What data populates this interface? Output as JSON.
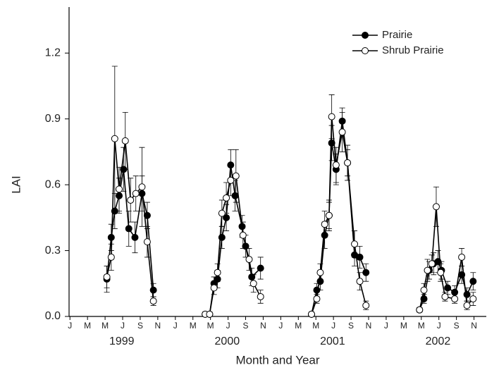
{
  "chart_data": {
    "type": "line",
    "ylabel": "LAI",
    "xlabel": "Month and Year",
    "xlim": [
      -0.1,
      47.4
    ],
    "ylim": [
      0,
      1.4
    ],
    "yticks": [
      {
        "value": 0,
        "label": "0.0"
      },
      0.3,
      0.6,
      0.9,
      1.2
    ],
    "xticks": [
      {
        "value": 0,
        "label": "J"
      },
      {
        "value": 2,
        "label": "M"
      },
      {
        "value": 4,
        "label": "M"
      },
      {
        "value": 6,
        "label": "J"
      },
      {
        "value": 8,
        "label": "S"
      },
      {
        "value": 10,
        "label": "N"
      },
      {
        "value": 12,
        "label": "J"
      },
      {
        "value": 14,
        "label": "M"
      },
      {
        "value": 16,
        "label": "M"
      },
      {
        "value": 18,
        "label": "J"
      },
      {
        "value": 20,
        "label": "S"
      },
      {
        "value": 22,
        "label": "N"
      },
      {
        "value": 24,
        "label": "J"
      },
      {
        "value": 26,
        "label": "M"
      },
      {
        "value": 28,
        "label": "M"
      },
      {
        "value": 30,
        "label": "J"
      },
      {
        "value": 32,
        "label": "S"
      },
      {
        "value": 34,
        "label": "N"
      },
      {
        "value": 36,
        "label": "J"
      },
      {
        "value": 38,
        "label": "M"
      },
      {
        "value": 40,
        "label": "M"
      },
      {
        "value": 42,
        "label": "J"
      },
      {
        "value": 44,
        "label": "S"
      },
      {
        "value": 46,
        "label": "N"
      }
    ],
    "year_ticks": [
      {
        "value": 5.9,
        "label": "1999"
      },
      {
        "value": 17.9,
        "label": "2000"
      },
      {
        "value": 29.9,
        "label": "2001"
      },
      {
        "value": 41.9,
        "label": "2002"
      }
    ],
    "legend": "upper right",
    "series": [
      {
        "name": "Prairie",
        "color": "#000000",
        "fill": "#000000",
        "x": [
          4.2,
          4.7,
          5.1,
          5.6,
          6.1,
          6.7,
          7.4,
          8.2,
          8.8,
          9.5,
          null,
          15.4,
          15.9,
          16.4,
          16.8,
          17.3,
          17.8,
          18.3,
          18.8,
          19.6,
          20.0,
          20.7,
          21.7,
          null,
          27.5,
          28.1,
          28.5,
          29.0,
          29.5,
          29.8,
          30.3,
          31.0,
          31.6,
          32.4,
          33.0,
          33.7,
          null,
          39.8,
          40.3,
          40.9,
          41.4,
          41.9,
          42.3,
          43.0,
          43.8,
          44.6,
          45.2,
          45.9
        ],
        "values": [
          0.17,
          0.36,
          0.48,
          0.55,
          0.67,
          0.4,
          0.36,
          0.56,
          0.46,
          0.12,
          null,
          0.01,
          0.01,
          0.15,
          0.17,
          0.36,
          0.45,
          0.69,
          0.55,
          0.41,
          0.32,
          0.18,
          0.22,
          null,
          0.01,
          0.12,
          0.16,
          0.37,
          0.46,
          0.79,
          0.67,
          0.89,
          0.7,
          0.28,
          0.27,
          0.2,
          null,
          0.03,
          0.08,
          0.21,
          0.24,
          0.25,
          0.21,
          0.13,
          0.11,
          0.19,
          0.1,
          0.16
        ],
        "errors": [
          0.06,
          0.06,
          0.08,
          0.08,
          0.1,
          0.08,
          0.07,
          0.08,
          0.06,
          0.03,
          null,
          0.01,
          0.01,
          0.03,
          0.04,
          0.05,
          0.06,
          0.07,
          0.07,
          0.05,
          0.05,
          0.04,
          0.05,
          null,
          0.01,
          0.03,
          0.04,
          0.06,
          0.06,
          0.08,
          0.07,
          0.06,
          0.08,
          0.05,
          0.05,
          0.04,
          null,
          0.01,
          0.02,
          0.04,
          0.05,
          0.05,
          0.04,
          0.03,
          0.03,
          0.04,
          0.03,
          0.04
        ]
      },
      {
        "name": "Shrub Prairie",
        "color": "#000000",
        "fill": "#ffffff",
        "x": [
          4.2,
          4.7,
          5.1,
          5.6,
          6.3,
          6.9,
          7.5,
          8.2,
          8.8,
          9.5,
          null,
          15.4,
          15.9,
          16.4,
          16.8,
          17.3,
          17.8,
          18.3,
          18.9,
          19.7,
          20.4,
          20.9,
          21.7,
          null,
          27.5,
          28.1,
          28.5,
          29.0,
          29.5,
          29.8,
          30.3,
          31.0,
          31.6,
          32.4,
          33.0,
          33.7,
          null,
          39.8,
          40.3,
          40.7,
          41.2,
          41.7,
          42.2,
          42.7,
          43.8,
          44.6,
          45.2,
          45.9
        ],
        "values": [
          0.18,
          0.27,
          0.81,
          0.58,
          0.8,
          0.53,
          0.56,
          0.59,
          0.34,
          0.07,
          null,
          0.01,
          0.01,
          0.13,
          0.2,
          0.47,
          0.54,
          0.62,
          0.64,
          0.37,
          0.26,
          0.15,
          0.09,
          null,
          0.01,
          0.08,
          0.2,
          0.42,
          0.46,
          0.91,
          0.69,
          0.84,
          0.7,
          0.33,
          0.16,
          0.05,
          null,
          0.03,
          0.12,
          0.21,
          0.24,
          0.5,
          0.2,
          0.09,
          0.08,
          0.27,
          0.05,
          0.08
        ],
        "errors": [
          0.05,
          0.06,
          0.33,
          0.1,
          0.13,
          0.1,
          0.08,
          0.18,
          0.07,
          0.02,
          null,
          0.01,
          0.01,
          0.03,
          0.04,
          0.06,
          0.07,
          0.07,
          0.12,
          0.06,
          0.05,
          0.04,
          0.03,
          null,
          0.01,
          0.02,
          0.04,
          0.06,
          0.07,
          0.1,
          0.08,
          0.09,
          0.06,
          0.06,
          0.04,
          0.02,
          null,
          0.01,
          0.03,
          0.05,
          0.04,
          0.09,
          0.04,
          0.02,
          0.02,
          0.04,
          0.02,
          0.03
        ]
      }
    ]
  }
}
